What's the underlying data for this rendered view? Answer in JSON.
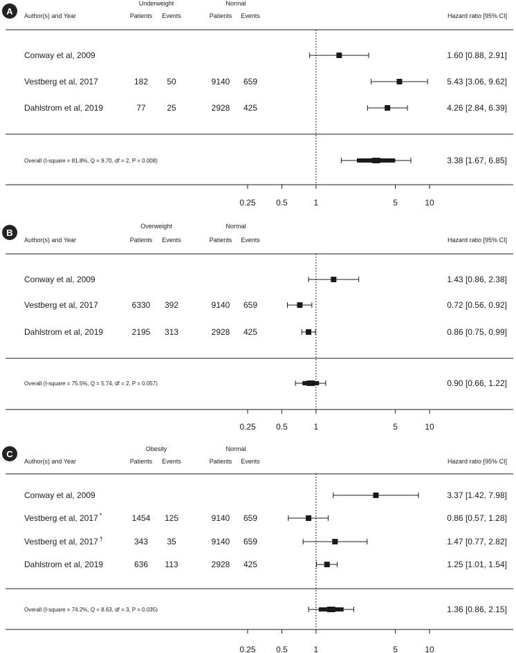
{
  "chart_data": [
    {
      "type": "forest",
      "panel": "A",
      "group_header": "Underweight",
      "reference_header": "Normal",
      "author_header": "Author(s) and Year",
      "col_patients": "Patients",
      "col_events": "Events",
      "hr_header": "Hazard ratio [95% CI]",
      "studies": [
        {
          "label": "Conway et al, 2009",
          "sup": "",
          "g_patients": "",
          "g_events": "",
          "n_patients": "",
          "n_events": "",
          "hr": 1.6,
          "lo": 0.88,
          "hi": 2.91,
          "hr_text": "1.60 [0.88, 2.91]"
        },
        {
          "label": "Vestberg et al, 2017",
          "sup": "",
          "g_patients": "182",
          "g_events": "50",
          "n_patients": "9140",
          "n_events": "659",
          "hr": 5.43,
          "lo": 3.06,
          "hi": 9.62,
          "hr_text": "5.43 [3.06, 9.62]"
        },
        {
          "label": "Dahlstrom et al, 2019",
          "sup": "",
          "g_patients": "77",
          "g_events": "25",
          "n_patients": "2928",
          "n_events": "425",
          "hr": 4.26,
          "lo": 2.84,
          "hi": 6.39,
          "hr_text": "4.26 [2.84, 6.39]"
        }
      ],
      "overall": {
        "label": "Overall (I-square = 81.8%, Q = 9.70, df = 2, P = 0.008)",
        "hr": 3.38,
        "lo": 1.67,
        "hi": 6.85,
        "hr_text": "3.38 [1.67, 6.85]"
      },
      "x_scale": "log",
      "x_ticks": [
        0.25,
        0.5,
        1,
        5,
        10
      ],
      "x_tick_labels": [
        "0.25",
        "0.5",
        "1",
        "5",
        "10"
      ]
    },
    {
      "type": "forest",
      "panel": "B",
      "group_header": "Overweight",
      "reference_header": "Normal",
      "author_header": "Author(s) and Year",
      "col_patients": "Patients",
      "col_events": "Events",
      "hr_header": "Hazard ratio [95% CI]",
      "studies": [
        {
          "label": "Conway et al, 2009",
          "sup": "",
          "g_patients": "",
          "g_events": "",
          "n_patients": "",
          "n_events": "",
          "hr": 1.43,
          "lo": 0.86,
          "hi": 2.38,
          "hr_text": "1.43 [0.86, 2.38]"
        },
        {
          "label": "Vestberg et al, 2017",
          "sup": "",
          "g_patients": "6330",
          "g_events": "392",
          "n_patients": "9140",
          "n_events": "659",
          "hr": 0.72,
          "lo": 0.56,
          "hi": 0.92,
          "hr_text": "0.72 [0.56, 0.92]"
        },
        {
          "label": "Dahlstrom et al, 2019",
          "sup": "",
          "g_patients": "2195",
          "g_events": "313",
          "n_patients": "2928",
          "n_events": "425",
          "hr": 0.86,
          "lo": 0.75,
          "hi": 0.99,
          "hr_text": "0.86 [0.75, 0.99]"
        }
      ],
      "overall": {
        "label": "Overall (I-square = 75.5%, Q = 5.74, df = 2, P = 0.057)",
        "hr": 0.9,
        "lo": 0.66,
        "hi": 1.22,
        "hr_text": "0.90 [0.66, 1.22]"
      },
      "x_scale": "log",
      "x_ticks": [
        0.25,
        0.5,
        1,
        5,
        10
      ],
      "x_tick_labels": [
        "0.25",
        "0.5",
        "1",
        "5",
        "10"
      ]
    },
    {
      "type": "forest",
      "panel": "C",
      "group_header": "Obesity",
      "reference_header": "Normal",
      "author_header": "Author(s) and Year",
      "col_patients": "Patients",
      "col_events": "Events",
      "hr_header": "Hazard ratio [95% CI]",
      "studies": [
        {
          "label": "Conway et al, 2009",
          "sup": "",
          "g_patients": "",
          "g_events": "",
          "n_patients": "",
          "n_events": "",
          "hr": 3.37,
          "lo": 1.42,
          "hi": 7.98,
          "hr_text": "3.37 [1.42, 7.98]"
        },
        {
          "label": "Vestberg et al, 2017",
          "sup": "*",
          "g_patients": "1454",
          "g_events": "125",
          "n_patients": "9140",
          "n_events": "659",
          "hr": 0.86,
          "lo": 0.57,
          "hi": 1.28,
          "hr_text": "0.86 [0.57, 1.28]"
        },
        {
          "label": "Vestberg et al, 2017",
          "sup": "†",
          "g_patients": "343",
          "g_events": "35",
          "n_patients": "9140",
          "n_events": "659",
          "hr": 1.47,
          "lo": 0.77,
          "hi": 2.82,
          "hr_text": "1.47 [0.77, 2.82]"
        },
        {
          "label": "Dahlstrom et al, 2019",
          "sup": "",
          "g_patients": "636",
          "g_events": "113",
          "n_patients": "2928",
          "n_events": "425",
          "hr": 1.25,
          "lo": 1.01,
          "hi": 1.54,
          "hr_text": "1.25 [1.01, 1.54]"
        }
      ],
      "overall": {
        "label": "Overall (I-square = 74.2%, Q = 8.63, df = 3, P = 0.035)",
        "hr": 1.36,
        "lo": 0.86,
        "hi": 2.15,
        "hr_text": "1.36 [0.86, 2.15]"
      },
      "x_scale": "log",
      "x_ticks": [
        0.25,
        0.5,
        1,
        5,
        10
      ],
      "x_tick_labels": [
        "0.25",
        "0.5",
        "1",
        "5",
        "10"
      ]
    }
  ],
  "colors": {
    "ink": "#1a1a1a",
    "badge": "#222222",
    "background": "#ffffff"
  }
}
